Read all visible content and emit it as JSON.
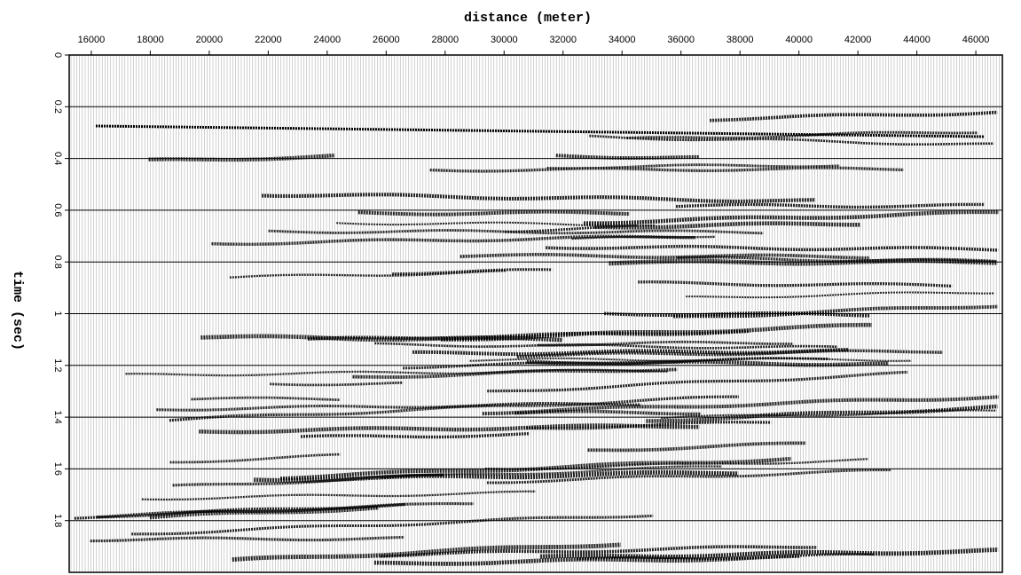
{
  "chart_data": {
    "type": "seismic",
    "title": "distance (meter)",
    "y_label": "time (sec)",
    "xlim": [
      15250,
      46900
    ],
    "xticks": [
      16000,
      18000,
      20000,
      22000,
      24000,
      26000,
      28000,
      30000,
      32000,
      34000,
      36000,
      38000,
      40000,
      42000,
      44000,
      46000
    ],
    "ylim": [
      0,
      2.0
    ],
    "yticks": [
      0,
      0.2,
      0.4,
      0.6,
      0.8,
      1,
      1.2,
      1.4,
      1.6,
      1.8
    ],
    "y_inverted": true,
    "grid": true,
    "color": "#000000"
  }
}
